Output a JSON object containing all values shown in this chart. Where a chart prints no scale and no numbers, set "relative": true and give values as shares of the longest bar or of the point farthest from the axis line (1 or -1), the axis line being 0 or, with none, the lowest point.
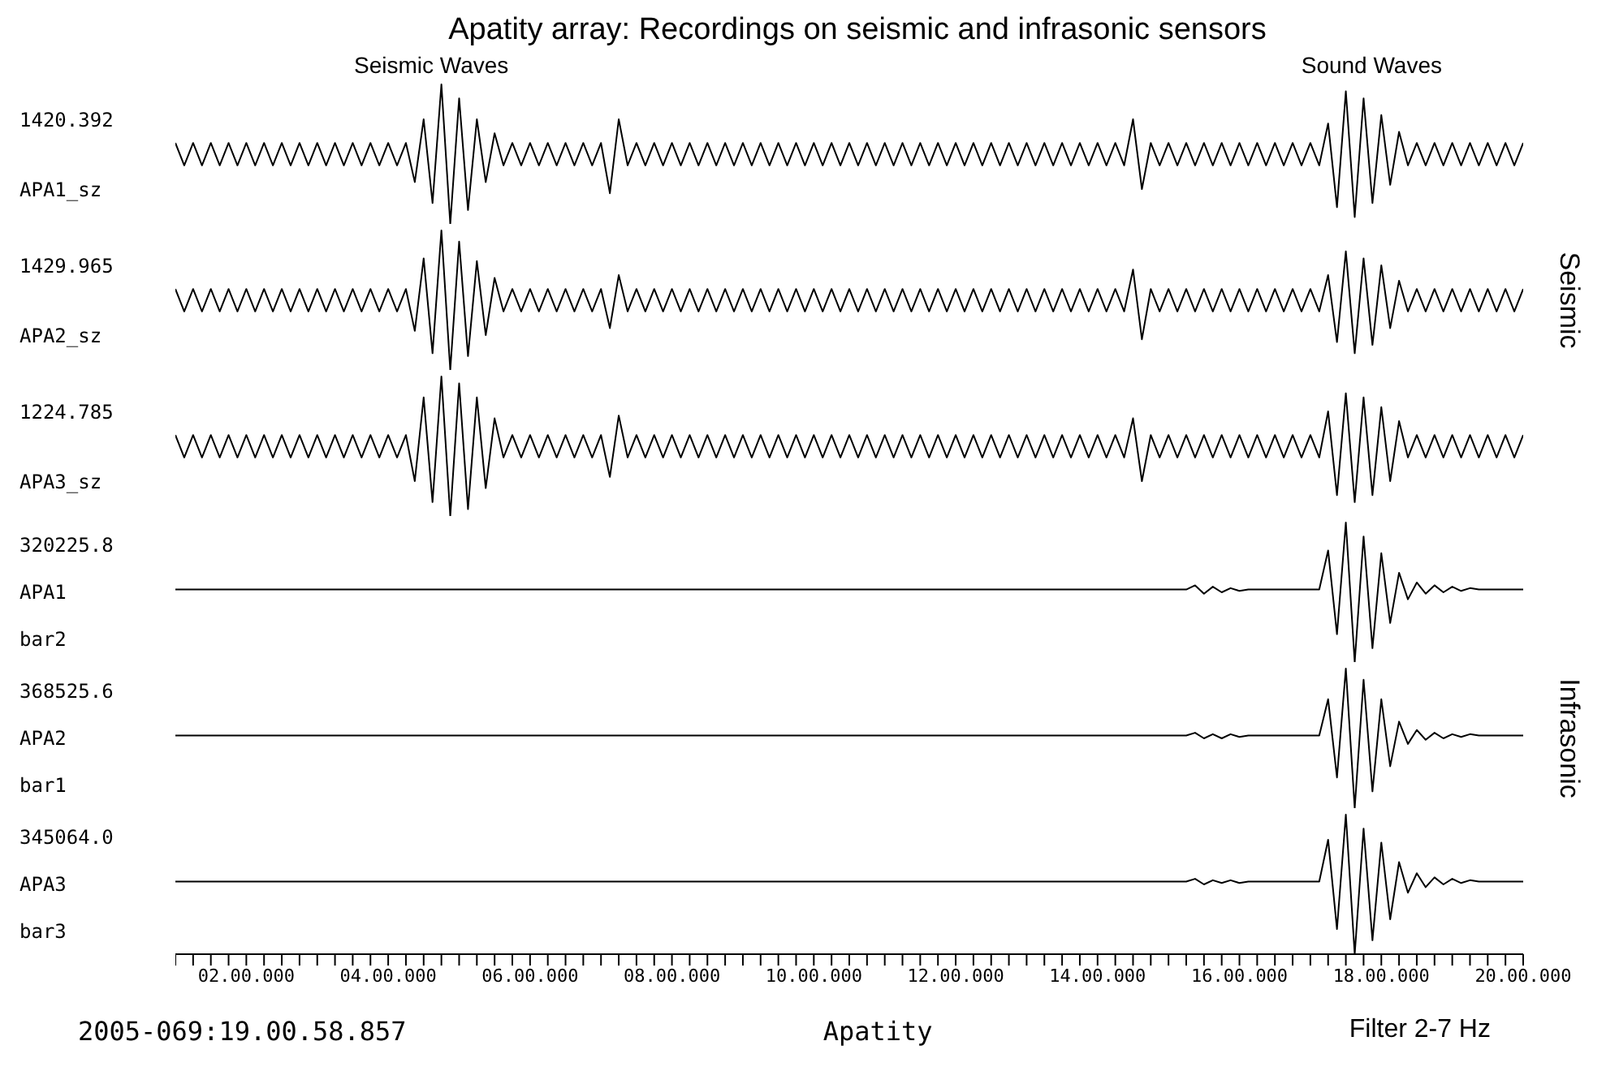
{
  "chart_data": [
    {
      "type": "other",
      "title": "Apatity array: Recordings on seismic and infrasonic sensors",
      "annotations": [
        "Seismic Waves",
        "Sound Waves"
      ]
    },
    {
      "type": "line",
      "relative": true,
      "tick_labels": false,
      "annotations": [
        "1420.392",
        "APA1_sz"
      ],
      "categories": [
        null,
        null,
        null,
        null,
        null,
        null,
        null,
        null,
        "02.00.000",
        null,
        null,
        null,
        null,
        null,
        null,
        null,
        null,
        null,
        null,
        null,
        null,
        null,
        null,
        null,
        "04.00.000",
        null,
        null,
        null,
        null,
        null,
        null,
        null,
        null,
        null,
        null,
        null,
        null,
        null,
        null,
        null,
        "06.00.000",
        null,
        null,
        null,
        null,
        null,
        null,
        null,
        null,
        null,
        null,
        null,
        null,
        null,
        null,
        null,
        "08.00.000",
        null,
        null,
        null,
        null,
        null,
        null,
        null,
        null,
        null,
        null,
        null,
        null,
        null,
        null,
        null,
        "10.00.000",
        null,
        null,
        null,
        null,
        null,
        null,
        null,
        null,
        null,
        null,
        null,
        null,
        null,
        null,
        null,
        "12.00.000",
        null,
        null,
        null,
        null,
        null,
        null,
        null,
        null,
        null,
        null,
        null,
        null,
        null,
        null,
        null,
        "14.00.000",
        null,
        null,
        null,
        null,
        null,
        null,
        null,
        null,
        null,
        null,
        null,
        null,
        null,
        null,
        null,
        "16.00.000",
        null,
        null,
        null,
        null,
        null,
        null,
        null,
        null,
        null,
        null,
        null,
        null,
        null,
        null,
        null,
        "18.00.000",
        null,
        null,
        null,
        null,
        null,
        null,
        null,
        null,
        null,
        null,
        null,
        null,
        null,
        null,
        null,
        "20.00.000"
      ],
      "series": [
        {
          "color": "#000000",
          "values": [
            0.58,
            0.42,
            0.58,
            0.42,
            0.58,
            0.42,
            0.58,
            0.42,
            0.58,
            0.42,
            0.58,
            0.42,
            0.58,
            0.42,
            0.58,
            0.42,
            0.58,
            0.42,
            0.58,
            0.42,
            0.58,
            0.42,
            0.58,
            0.42,
            0.58,
            0.42,
            0.58,
            0.3,
            0.75,
            0.15,
            1,
            0,
            0.9,
            0.1,
            0.75,
            0.3,
            0.65,
            0.42,
            0.58,
            0.42,
            0.58,
            0.42,
            0.58,
            0.42,
            0.58,
            0.42,
            0.58,
            0.42,
            0.58,
            0.22,
            0.75,
            0.42,
            0.58,
            0.42,
            0.58,
            0.42,
            0.58,
            0.42,
            0.58,
            0.42,
            0.58,
            0.42,
            0.58,
            0.42,
            0.58,
            0.42,
            0.58,
            0.42,
            0.58,
            0.42,
            0.58,
            0.42,
            0.58,
            0.42,
            0.58,
            0.42,
            0.58,
            0.42,
            0.58,
            0.42,
            0.58,
            0.42,
            0.58,
            0.42,
            0.58,
            0.42,
            0.58,
            0.42,
            0.58,
            0.42,
            0.58,
            0.42,
            0.58,
            0.42,
            0.58,
            0.42,
            0.58,
            0.42,
            0.58,
            0.42,
            0.58,
            0.42,
            0.58,
            0.42,
            0.58,
            0.42,
            0.58,
            0.42,
            0.75,
            0.25,
            0.58,
            0.42,
            0.58,
            0.42,
            0.58,
            0.42,
            0.58,
            0.42,
            0.58,
            0.42,
            0.58,
            0.42,
            0.58,
            0.42,
            0.58,
            0.42,
            0.58,
            0.42,
            0.58,
            0.42,
            0.72,
            0.12,
            0.95,
            0.05,
            0.9,
            0.15,
            0.78,
            0.28,
            0.66,
            0.42,
            0.58,
            0.42,
            0.58,
            0.42,
            0.58,
            0.42,
            0.58,
            0.42,
            0.58,
            0.42,
            0.58,
            0.42,
            0.58
          ]
        }
      ]
    },
    {
      "type": "line",
      "relative": true,
      "tick_labels": false,
      "y2label": "Seismic",
      "annotations": [
        "1429.965",
        "APA2_sz"
      ],
      "categories": [
        null,
        null,
        null,
        null,
        null,
        null,
        null,
        null,
        "02.00.000",
        null,
        null,
        null,
        null,
        null,
        null,
        null,
        null,
        null,
        null,
        null,
        null,
        null,
        null,
        null,
        "04.00.000",
        null,
        null,
        null,
        null,
        null,
        null,
        null,
        null,
        null,
        null,
        null,
        null,
        null,
        null,
        null,
        "06.00.000",
        null,
        null,
        null,
        null,
        null,
        null,
        null,
        null,
        null,
        null,
        null,
        null,
        null,
        null,
        null,
        "08.00.000",
        null,
        null,
        null,
        null,
        null,
        null,
        null,
        null,
        null,
        null,
        null,
        null,
        null,
        null,
        null,
        "10.00.000",
        null,
        null,
        null,
        null,
        null,
        null,
        null,
        null,
        null,
        null,
        null,
        null,
        null,
        null,
        null,
        "12.00.000",
        null,
        null,
        null,
        null,
        null,
        null,
        null,
        null,
        null,
        null,
        null,
        null,
        null,
        null,
        null,
        "14.00.000",
        null,
        null,
        null,
        null,
        null,
        null,
        null,
        null,
        null,
        null,
        null,
        null,
        null,
        null,
        null,
        "16.00.000",
        null,
        null,
        null,
        null,
        null,
        null,
        null,
        null,
        null,
        null,
        null,
        null,
        null,
        null,
        null,
        "18.00.000",
        null,
        null,
        null,
        null,
        null,
        null,
        null,
        null,
        null,
        null,
        null,
        null,
        null,
        null,
        null,
        "20.00.000"
      ],
      "series": [
        {
          "color": "#000000",
          "values": [
            0.58,
            0.42,
            0.58,
            0.42,
            0.58,
            0.42,
            0.58,
            0.42,
            0.58,
            0.42,
            0.58,
            0.42,
            0.58,
            0.42,
            0.58,
            0.42,
            0.58,
            0.42,
            0.58,
            0.42,
            0.58,
            0.42,
            0.58,
            0.42,
            0.58,
            0.42,
            0.58,
            0.28,
            0.8,
            0.12,
            1,
            0,
            0.92,
            0.1,
            0.78,
            0.25,
            0.66,
            0.42,
            0.58,
            0.42,
            0.58,
            0.42,
            0.58,
            0.42,
            0.58,
            0.42,
            0.58,
            0.42,
            0.58,
            0.3,
            0.68,
            0.42,
            0.58,
            0.42,
            0.58,
            0.42,
            0.58,
            0.42,
            0.58,
            0.42,
            0.58,
            0.42,
            0.58,
            0.42,
            0.58,
            0.42,
            0.58,
            0.42,
            0.58,
            0.42,
            0.58,
            0.42,
            0.58,
            0.42,
            0.58,
            0.42,
            0.58,
            0.42,
            0.58,
            0.42,
            0.58,
            0.42,
            0.58,
            0.42,
            0.58,
            0.42,
            0.58,
            0.42,
            0.58,
            0.42,
            0.58,
            0.42,
            0.58,
            0.42,
            0.58,
            0.42,
            0.58,
            0.42,
            0.58,
            0.42,
            0.58,
            0.42,
            0.58,
            0.42,
            0.58,
            0.42,
            0.58,
            0.42,
            0.72,
            0.22,
            0.58,
            0.42,
            0.58,
            0.42,
            0.58,
            0.42,
            0.58,
            0.42,
            0.58,
            0.42,
            0.58,
            0.42,
            0.58,
            0.42,
            0.58,
            0.42,
            0.58,
            0.42,
            0.58,
            0.42,
            0.68,
            0.2,
            0.85,
            0.12,
            0.8,
            0.18,
            0.75,
            0.3,
            0.64,
            0.42,
            0.58,
            0.42,
            0.58,
            0.42,
            0.58,
            0.42,
            0.58,
            0.42,
            0.58,
            0.42,
            0.58,
            0.42,
            0.58
          ]
        }
      ]
    },
    {
      "type": "line",
      "relative": true,
      "tick_labels": false,
      "annotations": [
        "1224.785",
        "APA3_sz"
      ],
      "categories": [
        null,
        null,
        null,
        null,
        null,
        null,
        null,
        null,
        "02.00.000",
        null,
        null,
        null,
        null,
        null,
        null,
        null,
        null,
        null,
        null,
        null,
        null,
        null,
        null,
        null,
        "04.00.000",
        null,
        null,
        null,
        null,
        null,
        null,
        null,
        null,
        null,
        null,
        null,
        null,
        null,
        null,
        null,
        "06.00.000",
        null,
        null,
        null,
        null,
        null,
        null,
        null,
        null,
        null,
        null,
        null,
        null,
        null,
        null,
        null,
        "08.00.000",
        null,
        null,
        null,
        null,
        null,
        null,
        null,
        null,
        null,
        null,
        null,
        null,
        null,
        null,
        null,
        "10.00.000",
        null,
        null,
        null,
        null,
        null,
        null,
        null,
        null,
        null,
        null,
        null,
        null,
        null,
        null,
        null,
        "12.00.000",
        null,
        null,
        null,
        null,
        null,
        null,
        null,
        null,
        null,
        null,
        null,
        null,
        null,
        null,
        null,
        "14.00.000",
        null,
        null,
        null,
        null,
        null,
        null,
        null,
        null,
        null,
        null,
        null,
        null,
        null,
        null,
        null,
        "16.00.000",
        null,
        null,
        null,
        null,
        null,
        null,
        null,
        null,
        null,
        null,
        null,
        null,
        null,
        null,
        null,
        "18.00.000",
        null,
        null,
        null,
        null,
        null,
        null,
        null,
        null,
        null,
        null,
        null,
        null,
        null,
        null,
        null,
        "20.00.000"
      ],
      "series": [
        {
          "color": "#000000",
          "values": [
            0.58,
            0.42,
            0.58,
            0.42,
            0.58,
            0.42,
            0.58,
            0.42,
            0.58,
            0.42,
            0.58,
            0.42,
            0.58,
            0.42,
            0.58,
            0.42,
            0.58,
            0.42,
            0.58,
            0.42,
            0.58,
            0.42,
            0.58,
            0.42,
            0.58,
            0.42,
            0.58,
            0.25,
            0.85,
            0.1,
            1,
            0,
            0.95,
            0.05,
            0.85,
            0.2,
            0.7,
            0.42,
            0.58,
            0.42,
            0.58,
            0.42,
            0.58,
            0.42,
            0.58,
            0.42,
            0.58,
            0.42,
            0.58,
            0.28,
            0.72,
            0.42,
            0.58,
            0.42,
            0.58,
            0.42,
            0.58,
            0.42,
            0.58,
            0.42,
            0.58,
            0.42,
            0.58,
            0.42,
            0.58,
            0.42,
            0.58,
            0.42,
            0.58,
            0.42,
            0.58,
            0.42,
            0.58,
            0.42,
            0.58,
            0.42,
            0.58,
            0.42,
            0.58,
            0.42,
            0.58,
            0.42,
            0.58,
            0.42,
            0.58,
            0.42,
            0.58,
            0.42,
            0.58,
            0.42,
            0.58,
            0.42,
            0.58,
            0.42,
            0.58,
            0.42,
            0.58,
            0.42,
            0.58,
            0.42,
            0.58,
            0.42,
            0.58,
            0.42,
            0.58,
            0.42,
            0.58,
            0.42,
            0.7,
            0.25,
            0.58,
            0.42,
            0.58,
            0.42,
            0.58,
            0.42,
            0.58,
            0.42,
            0.58,
            0.42,
            0.58,
            0.42,
            0.58,
            0.42,
            0.58,
            0.42,
            0.58,
            0.42,
            0.58,
            0.42,
            0.75,
            0.15,
            0.88,
            0.1,
            0.85,
            0.15,
            0.78,
            0.25,
            0.68,
            0.42,
            0.58,
            0.42,
            0.58,
            0.42,
            0.58,
            0.42,
            0.58,
            0.42,
            0.58,
            0.42,
            0.58,
            0.42,
            0.58
          ]
        }
      ]
    },
    {
      "type": "line",
      "relative": true,
      "tick_labels": false,
      "annotations": [
        "320225.8",
        "APA1",
        "bar2"
      ],
      "categories": [
        null,
        null,
        null,
        null,
        null,
        null,
        null,
        null,
        "02.00.000",
        null,
        null,
        null,
        null,
        null,
        null,
        null,
        null,
        null,
        null,
        null,
        null,
        null,
        null,
        null,
        "04.00.000",
        null,
        null,
        null,
        null,
        null,
        null,
        null,
        null,
        null,
        null,
        null,
        null,
        null,
        null,
        null,
        "06.00.000",
        null,
        null,
        null,
        null,
        null,
        null,
        null,
        null,
        null,
        null,
        null,
        null,
        null,
        null,
        null,
        "08.00.000",
        null,
        null,
        null,
        null,
        null,
        null,
        null,
        null,
        null,
        null,
        null,
        null,
        null,
        null,
        null,
        "10.00.000",
        null,
        null,
        null,
        null,
        null,
        null,
        null,
        null,
        null,
        null,
        null,
        null,
        null,
        null,
        null,
        "12.00.000",
        null,
        null,
        null,
        null,
        null,
        null,
        null,
        null,
        null,
        null,
        null,
        null,
        null,
        null,
        null,
        "14.00.000",
        null,
        null,
        null,
        null,
        null,
        null,
        null,
        null,
        null,
        null,
        null,
        null,
        null,
        null,
        null,
        "16.00.000",
        null,
        null,
        null,
        null,
        null,
        null,
        null,
        null,
        null,
        null,
        null,
        null,
        null,
        null,
        null,
        "18.00.000",
        null,
        null,
        null,
        null,
        null,
        null,
        null,
        null,
        null,
        null,
        null,
        null,
        null,
        null,
        null,
        "20.00.000"
      ],
      "series": [
        {
          "color": "#000000",
          "values": [
            0.52,
            0.52,
            0.52,
            0.52,
            0.52,
            0.52,
            0.52,
            0.52,
            0.52,
            0.52,
            0.52,
            0.52,
            0.52,
            0.52,
            0.52,
            0.52,
            0.52,
            0.52,
            0.52,
            0.52,
            0.52,
            0.52,
            0.52,
            0.52,
            0.52,
            0.52,
            0.52,
            0.52,
            0.52,
            0.52,
            0.52,
            0.52,
            0.52,
            0.52,
            0.52,
            0.52,
            0.52,
            0.52,
            0.52,
            0.52,
            0.52,
            0.52,
            0.52,
            0.52,
            0.52,
            0.52,
            0.52,
            0.52,
            0.52,
            0.52,
            0.52,
            0.52,
            0.52,
            0.52,
            0.52,
            0.52,
            0.52,
            0.52,
            0.52,
            0.52,
            0.52,
            0.52,
            0.52,
            0.52,
            0.52,
            0.52,
            0.52,
            0.52,
            0.52,
            0.52,
            0.52,
            0.52,
            0.52,
            0.52,
            0.52,
            0.52,
            0.52,
            0.52,
            0.52,
            0.52,
            0.52,
            0.52,
            0.52,
            0.52,
            0.52,
            0.52,
            0.52,
            0.52,
            0.52,
            0.52,
            0.52,
            0.52,
            0.52,
            0.52,
            0.52,
            0.52,
            0.52,
            0.52,
            0.52,
            0.52,
            0.52,
            0.52,
            0.52,
            0.52,
            0.52,
            0.52,
            0.52,
            0.52,
            0.52,
            0.52,
            0.52,
            0.52,
            0.52,
            0.52,
            0.52,
            0.55,
            0.49,
            0.54,
            0.5,
            0.53,
            0.51,
            0.52,
            0.52,
            0.52,
            0.52,
            0.52,
            0.52,
            0.52,
            0.52,
            0.52,
            0.8,
            0.2,
            1,
            0,
            0.9,
            0.1,
            0.78,
            0.28,
            0.64,
            0.45,
            0.57,
            0.49,
            0.55,
            0.5,
            0.54,
            0.51,
            0.53,
            0.52,
            0.52,
            0.52,
            0.52,
            0.52,
            0.52
          ]
        }
      ]
    },
    {
      "type": "line",
      "relative": true,
      "tick_labels": false,
      "y2label": "Infrasonic",
      "annotations": [
        "368525.6",
        "APA2",
        "bar1"
      ],
      "categories": [
        null,
        null,
        null,
        null,
        null,
        null,
        null,
        null,
        "02.00.000",
        null,
        null,
        null,
        null,
        null,
        null,
        null,
        null,
        null,
        null,
        null,
        null,
        null,
        null,
        null,
        "04.00.000",
        null,
        null,
        null,
        null,
        null,
        null,
        null,
        null,
        null,
        null,
        null,
        null,
        null,
        null,
        null,
        "06.00.000",
        null,
        null,
        null,
        null,
        null,
        null,
        null,
        null,
        null,
        null,
        null,
        null,
        null,
        null,
        null,
        "08.00.000",
        null,
        null,
        null,
        null,
        null,
        null,
        null,
        null,
        null,
        null,
        null,
        null,
        null,
        null,
        null,
        "10.00.000",
        null,
        null,
        null,
        null,
        null,
        null,
        null,
        null,
        null,
        null,
        null,
        null,
        null,
        null,
        null,
        "12.00.000",
        null,
        null,
        null,
        null,
        null,
        null,
        null,
        null,
        null,
        null,
        null,
        null,
        null,
        null,
        null,
        "14.00.000",
        null,
        null,
        null,
        null,
        null,
        null,
        null,
        null,
        null,
        null,
        null,
        null,
        null,
        null,
        null,
        "16.00.000",
        null,
        null,
        null,
        null,
        null,
        null,
        null,
        null,
        null,
        null,
        null,
        null,
        null,
        null,
        null,
        "18.00.000",
        null,
        null,
        null,
        null,
        null,
        null,
        null,
        null,
        null,
        null,
        null,
        null,
        null,
        null,
        null,
        "20.00.000"
      ],
      "series": [
        {
          "color": "#000000",
          "values": [
            0.52,
            0.52,
            0.52,
            0.52,
            0.52,
            0.52,
            0.52,
            0.52,
            0.52,
            0.52,
            0.52,
            0.52,
            0.52,
            0.52,
            0.52,
            0.52,
            0.52,
            0.52,
            0.52,
            0.52,
            0.52,
            0.52,
            0.52,
            0.52,
            0.52,
            0.52,
            0.52,
            0.52,
            0.52,
            0.52,
            0.52,
            0.52,
            0.52,
            0.52,
            0.52,
            0.52,
            0.52,
            0.52,
            0.52,
            0.52,
            0.52,
            0.52,
            0.52,
            0.52,
            0.52,
            0.52,
            0.52,
            0.52,
            0.52,
            0.52,
            0.52,
            0.52,
            0.52,
            0.52,
            0.52,
            0.52,
            0.52,
            0.52,
            0.52,
            0.52,
            0.52,
            0.52,
            0.52,
            0.52,
            0.52,
            0.52,
            0.52,
            0.52,
            0.52,
            0.52,
            0.52,
            0.52,
            0.52,
            0.52,
            0.52,
            0.52,
            0.52,
            0.52,
            0.52,
            0.52,
            0.52,
            0.52,
            0.52,
            0.52,
            0.52,
            0.52,
            0.52,
            0.52,
            0.52,
            0.52,
            0.52,
            0.52,
            0.52,
            0.52,
            0.52,
            0.52,
            0.52,
            0.52,
            0.52,
            0.52,
            0.52,
            0.52,
            0.52,
            0.52,
            0.52,
            0.52,
            0.52,
            0.52,
            0.52,
            0.52,
            0.52,
            0.52,
            0.52,
            0.52,
            0.52,
            0.54,
            0.5,
            0.53,
            0.5,
            0.53,
            0.51,
            0.52,
            0.52,
            0.52,
            0.52,
            0.52,
            0.52,
            0.52,
            0.52,
            0.52,
            0.78,
            0.22,
            1,
            0,
            0.92,
            0.12,
            0.78,
            0.3,
            0.62,
            0.46,
            0.56,
            0.49,
            0.54,
            0.5,
            0.53,
            0.51,
            0.53,
            0.52,
            0.52,
            0.52,
            0.52,
            0.52,
            0.52
          ]
        }
      ]
    },
    {
      "type": "line",
      "relative": true,
      "tick_labels": "x",
      "annotations": [
        "345064.0",
        "APA3",
        "bar3"
      ],
      "categories": [
        null,
        null,
        null,
        null,
        null,
        null,
        null,
        null,
        "02.00.000",
        null,
        null,
        null,
        null,
        null,
        null,
        null,
        null,
        null,
        null,
        null,
        null,
        null,
        null,
        null,
        "04.00.000",
        null,
        null,
        null,
        null,
        null,
        null,
        null,
        null,
        null,
        null,
        null,
        null,
        null,
        null,
        null,
        "06.00.000",
        null,
        null,
        null,
        null,
        null,
        null,
        null,
        null,
        null,
        null,
        null,
        null,
        null,
        null,
        null,
        "08.00.000",
        null,
        null,
        null,
        null,
        null,
        null,
        null,
        null,
        null,
        null,
        null,
        null,
        null,
        null,
        null,
        "10.00.000",
        null,
        null,
        null,
        null,
        null,
        null,
        null,
        null,
        null,
        null,
        null,
        null,
        null,
        null,
        null,
        "12.00.000",
        null,
        null,
        null,
        null,
        null,
        null,
        null,
        null,
        null,
        null,
        null,
        null,
        null,
        null,
        null,
        "14.00.000",
        null,
        null,
        null,
        null,
        null,
        null,
        null,
        null,
        null,
        null,
        null,
        null,
        null,
        null,
        null,
        "16.00.000",
        null,
        null,
        null,
        null,
        null,
        null,
        null,
        null,
        null,
        null,
        null,
        null,
        null,
        null,
        null,
        "18.00.000",
        null,
        null,
        null,
        null,
        null,
        null,
        null,
        null,
        null,
        null,
        null,
        null,
        null,
        null,
        null,
        "20.00.000"
      ],
      "series": [
        {
          "color": "#000000",
          "values": [
            0.52,
            0.52,
            0.52,
            0.52,
            0.52,
            0.52,
            0.52,
            0.52,
            0.52,
            0.52,
            0.52,
            0.52,
            0.52,
            0.52,
            0.52,
            0.52,
            0.52,
            0.52,
            0.52,
            0.52,
            0.52,
            0.52,
            0.52,
            0.52,
            0.52,
            0.52,
            0.52,
            0.52,
            0.52,
            0.52,
            0.52,
            0.52,
            0.52,
            0.52,
            0.52,
            0.52,
            0.52,
            0.52,
            0.52,
            0.52,
            0.52,
            0.52,
            0.52,
            0.52,
            0.52,
            0.52,
            0.52,
            0.52,
            0.52,
            0.52,
            0.52,
            0.52,
            0.52,
            0.52,
            0.52,
            0.52,
            0.52,
            0.52,
            0.52,
            0.52,
            0.52,
            0.52,
            0.52,
            0.52,
            0.52,
            0.52,
            0.52,
            0.52,
            0.52,
            0.52,
            0.52,
            0.52,
            0.52,
            0.52,
            0.52,
            0.52,
            0.52,
            0.52,
            0.52,
            0.52,
            0.52,
            0.52,
            0.52,
            0.52,
            0.52,
            0.52,
            0.52,
            0.52,
            0.52,
            0.52,
            0.52,
            0.52,
            0.52,
            0.52,
            0.52,
            0.52,
            0.52,
            0.52,
            0.52,
            0.52,
            0.52,
            0.52,
            0.52,
            0.52,
            0.52,
            0.52,
            0.52,
            0.52,
            0.52,
            0.52,
            0.52,
            0.52,
            0.52,
            0.52,
            0.52,
            0.54,
            0.5,
            0.53,
            0.51,
            0.53,
            0.51,
            0.52,
            0.52,
            0.52,
            0.52,
            0.52,
            0.52,
            0.52,
            0.52,
            0.52,
            0.82,
            0.18,
            1,
            0,
            0.9,
            0.1,
            0.8,
            0.25,
            0.66,
            0.44,
            0.58,
            0.48,
            0.55,
            0.5,
            0.54,
            0.51,
            0.53,
            0.52,
            0.52,
            0.52,
            0.52,
            0.52,
            0.52
          ]
        }
      ]
    },
    {
      "type": "other",
      "annotations": [
        "2005-069:19.00.58.857",
        "Apatity",
        "Filter 2-7 Hz"
      ]
    }
  ]
}
